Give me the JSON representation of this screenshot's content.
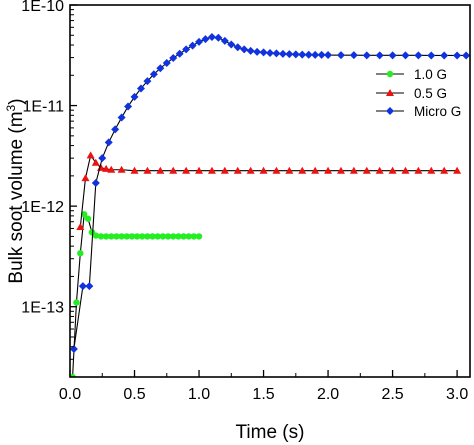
{
  "chart_data": {
    "type": "line",
    "title": "",
    "xlabel": "Time (s)",
    "ylabel": "Bulk soot volume (m",
    "ylabel_superscript": "3",
    "ylabel_close": ")",
    "xscale": "linear",
    "yscale": "log",
    "xlim": [
      0.0,
      3.1
    ],
    "ylim": [
      2e-14,
      1e-10
    ],
    "grid": false,
    "legend_position": "right",
    "x_ticks": [
      {
        "value": 0.0,
        "label": "0.0"
      },
      {
        "value": 0.5,
        "label": "0.5"
      },
      {
        "value": 1.0,
        "label": "1.0"
      },
      {
        "value": 1.5,
        "label": "1.5"
      },
      {
        "value": 2.0,
        "label": "2.0"
      },
      {
        "value": 2.5,
        "label": "2.5"
      },
      {
        "value": 3.0,
        "label": "3.0"
      }
    ],
    "y_ticks": [
      {
        "value": 1e-13,
        "label": "1E-13"
      },
      {
        "value": 1e-12,
        "label": "1E-12"
      },
      {
        "value": 1e-11,
        "label": "1E-11"
      },
      {
        "value": 1e-10,
        "label": "1E-10"
      }
    ],
    "series": [
      {
        "name": "1.0 G",
        "color": "#22ee22",
        "line_color": "#000000",
        "marker": "circle",
        "x": [
          0.02,
          0.05,
          0.08,
          0.11,
          0.14,
          0.17,
          0.2,
          0.24,
          0.28,
          0.32,
          0.36,
          0.4,
          0.44,
          0.48,
          0.52,
          0.56,
          0.6,
          0.64,
          0.68,
          0.72,
          0.76,
          0.8,
          0.84,
          0.88,
          0.92,
          0.96,
          1.0
        ],
        "y": [
          2e-14,
          1.1e-13,
          3.4e-13,
          8.3e-13,
          7.5e-13,
          5.5e-13,
          5.1e-13,
          5e-13,
          5e-13,
          5e-13,
          5e-13,
          5e-13,
          5e-13,
          5e-13,
          5e-13,
          5e-13,
          5e-13,
          5e-13,
          5e-13,
          5e-13,
          5e-13,
          5e-13,
          5e-13,
          5e-13,
          5e-13,
          5e-13,
          5e-13
        ]
      },
      {
        "name": "0.5 G",
        "color": "#ee1111",
        "line_color": "#000000",
        "marker": "triangle",
        "x": [
          0.08,
          0.12,
          0.16,
          0.2,
          0.24,
          0.28,
          0.32,
          0.4,
          0.5,
          0.6,
          0.7,
          0.8,
          0.9,
          1.0,
          1.1,
          1.2,
          1.3,
          1.4,
          1.5,
          1.6,
          1.7,
          1.8,
          1.9,
          2.0,
          2.1,
          2.2,
          2.3,
          2.4,
          2.5,
          2.6,
          2.7,
          2.8,
          2.9,
          3.0
        ],
        "y": [
          6.2e-13,
          1.9e-12,
          3.2e-12,
          2.7e-12,
          2.4e-12,
          2.35e-12,
          2.3e-12,
          2.3e-12,
          2.25e-12,
          2.25e-12,
          2.25e-12,
          2.25e-12,
          2.25e-12,
          2.25e-12,
          2.25e-12,
          2.25e-12,
          2.25e-12,
          2.25e-12,
          2.25e-12,
          2.25e-12,
          2.25e-12,
          2.25e-12,
          2.25e-12,
          2.25e-12,
          2.25e-12,
          2.25e-12,
          2.25e-12,
          2.25e-12,
          2.25e-12,
          2.25e-12,
          2.25e-12,
          2.25e-12,
          2.25e-12,
          2.25e-12
        ]
      },
      {
        "name": "Micro G",
        "color": "#1133dd",
        "line_color": "#000000",
        "marker": "diamond",
        "x": [
          0.03,
          0.1,
          0.15,
          0.2,
          0.25,
          0.3,
          0.35,
          0.4,
          0.45,
          0.5,
          0.55,
          0.6,
          0.65,
          0.7,
          0.75,
          0.8,
          0.85,
          0.9,
          0.95,
          1.0,
          1.05,
          1.1,
          1.15,
          1.2,
          1.25,
          1.3,
          1.35,
          1.4,
          1.45,
          1.5,
          1.55,
          1.6,
          1.65,
          1.7,
          1.75,
          1.8,
          1.85,
          1.9,
          1.95,
          2.0,
          2.1,
          2.2,
          2.3,
          2.4,
          2.5,
          2.6,
          2.7,
          2.8,
          2.9,
          3.0,
          3.07
        ],
        "y": [
          3.8e-14,
          1.6e-13,
          1.6e-13,
          1.7e-12,
          3e-12,
          4.3e-12,
          5.8e-12,
          7.6e-12,
          9.8e-12,
          1.22e-11,
          1.48e-11,
          1.75e-11,
          2.05e-11,
          2.35e-11,
          2.65e-11,
          2.97e-11,
          3.28e-11,
          3.62e-11,
          3.95e-11,
          4.3e-11,
          4.58e-11,
          4.8e-11,
          4.72e-11,
          4.4e-11,
          4.05e-11,
          3.8e-11,
          3.62e-11,
          3.5e-11,
          3.42e-11,
          3.38e-11,
          3.33e-11,
          3.3e-11,
          3.27e-11,
          3.25e-11,
          3.23e-11,
          3.21e-11,
          3.2e-11,
          3.19e-11,
          3.19e-11,
          3.18e-11,
          3.17e-11,
          3.17e-11,
          3.16e-11,
          3.16e-11,
          3.16e-11,
          3.16e-11,
          3.16e-11,
          3.15e-11,
          3.15e-11,
          3.15e-11,
          3.15e-11
        ]
      }
    ]
  }
}
